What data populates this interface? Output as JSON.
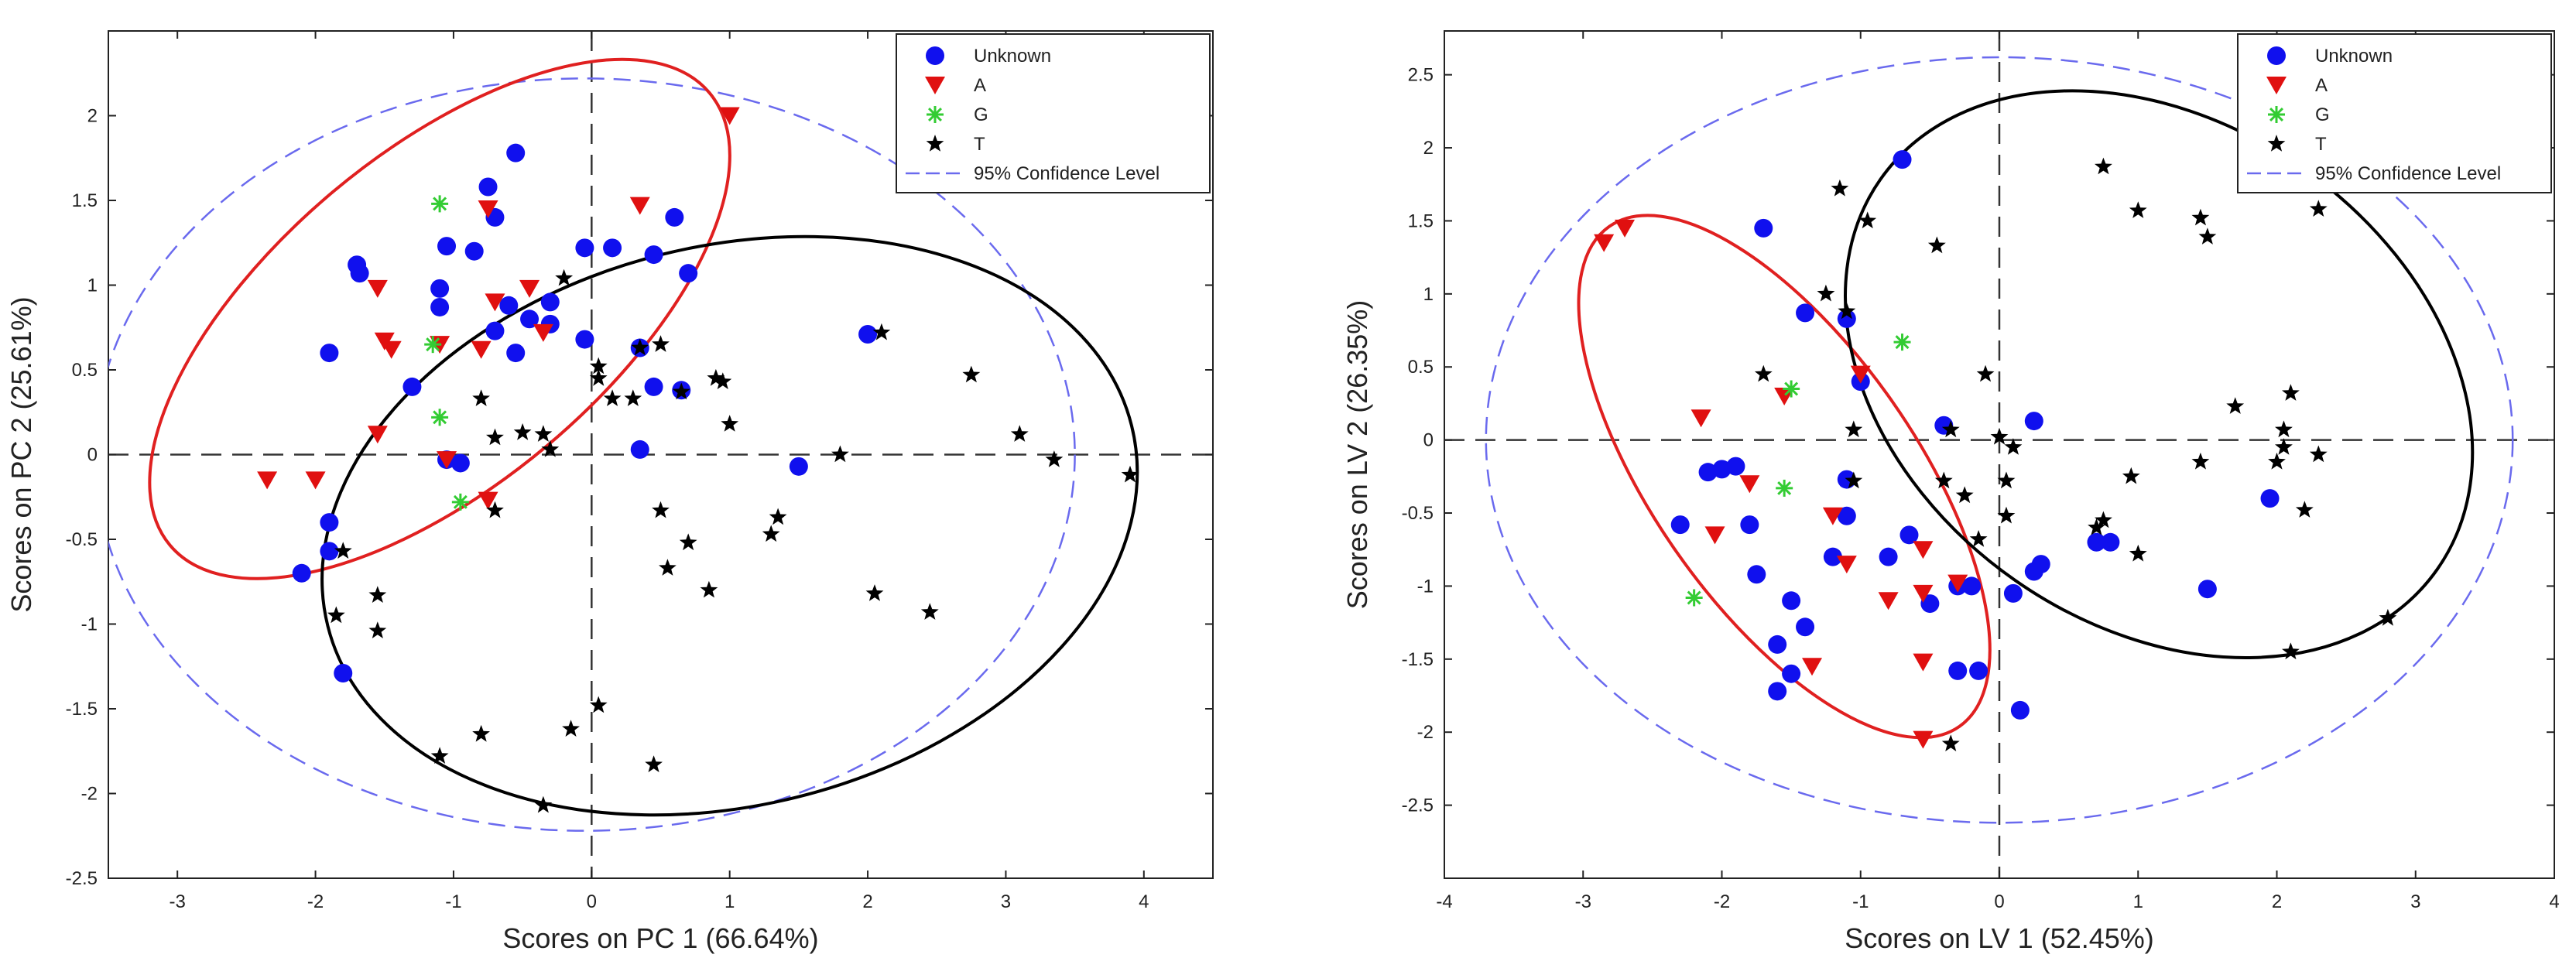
{
  "colors": {
    "unknown": "#1010ee",
    "A": "#e01010",
    "G": "#33cc33",
    "T": "#000000",
    "confidence": "#6a6aee",
    "red_ellipse": "#e02020",
    "black_ellipse": "#000000"
  },
  "chart_data": [
    {
      "type": "scatter",
      "xlabel": "Scores on PC 1 (66.64%)",
      "ylabel": "Scores on PC 2 (25.61%)",
      "xlim": [
        -3.5,
        4.5
      ],
      "ylim": [
        -2.5,
        2.5
      ],
      "xticks": [
        -3,
        -2,
        -1,
        0,
        1,
        2,
        3,
        4
      ],
      "yticks": [
        -2.5,
        -2,
        -1.5,
        -1,
        -0.5,
        0,
        0.5,
        1,
        1.5,
        2
      ],
      "ytick_labels": [
        "-2.5",
        "-2",
        "-1.5",
        "-1",
        "-0.5",
        "0",
        "0.5",
        "1",
        "1.5",
        "2"
      ],
      "xtick_labels": [
        "-3",
        "-2",
        "-1",
        "0",
        "1",
        "2",
        "3",
        "4"
      ],
      "legend": {
        "position": "top-right",
        "entries": [
          "Unknown",
          "A",
          "G",
          "T",
          "95% Confidence Level"
        ]
      },
      "series": [
        {
          "name": "Unknown",
          "marker": "circle",
          "points": [
            [
              -0.55,
              1.78
            ],
            [
              -0.75,
              1.58
            ],
            [
              -0.7,
              1.4
            ],
            [
              -1.7,
              1.12
            ],
            [
              -1.05,
              1.23
            ],
            [
              -1.68,
              1.07
            ],
            [
              -1.1,
              0.98
            ],
            [
              -0.85,
              1.2
            ],
            [
              -1.1,
              0.87
            ],
            [
              -0.6,
              0.88
            ],
            [
              -0.45,
              0.8
            ],
            [
              -0.3,
              0.9
            ],
            [
              -0.7,
              0.73
            ],
            [
              -0.3,
              0.77
            ],
            [
              -0.55,
              0.6
            ],
            [
              -0.05,
              1.22
            ],
            [
              0.15,
              1.22
            ],
            [
              0.45,
              1.18
            ],
            [
              0.6,
              1.4
            ],
            [
              0.7,
              1.07
            ],
            [
              -1.9,
              0.6
            ],
            [
              -1.3,
              0.4
            ],
            [
              -0.05,
              0.68
            ],
            [
              0.35,
              0.63
            ],
            [
              0.45,
              0.4
            ],
            [
              0.65,
              0.38
            ],
            [
              0.35,
              0.03
            ],
            [
              1.5,
              -0.07
            ],
            [
              2.0,
              0.71
            ],
            [
              -1.05,
              -0.03
            ],
            [
              -0.95,
              -0.05
            ],
            [
              -1.9,
              -0.4
            ],
            [
              -1.9,
              -0.57
            ],
            [
              -2.1,
              -0.7
            ],
            [
              -1.8,
              -1.29
            ]
          ]
        },
        {
          "name": "A",
          "marker": "triangle-down",
          "points": [
            [
              1.0,
              2.0
            ],
            [
              0.35,
              1.47
            ],
            [
              -0.75,
              1.45
            ],
            [
              -1.55,
              0.98
            ],
            [
              -0.7,
              0.9
            ],
            [
              -0.45,
              0.98
            ],
            [
              -0.35,
              0.72
            ],
            [
              -1.45,
              0.62
            ],
            [
              -1.5,
              0.67
            ],
            [
              -1.1,
              0.65
            ],
            [
              -0.8,
              0.62
            ],
            [
              -1.55,
              0.12
            ],
            [
              -1.05,
              -0.03
            ],
            [
              -2.35,
              -0.15
            ],
            [
              -2.0,
              -0.15
            ],
            [
              -0.75,
              -0.27
            ]
          ]
        },
        {
          "name": "G",
          "marker": "asterisk",
          "points": [
            [
              -1.1,
              1.48
            ],
            [
              -1.15,
              0.65
            ],
            [
              -1.1,
              0.22
            ],
            [
              -0.95,
              -0.28
            ]
          ]
        },
        {
          "name": "T",
          "marker": "star",
          "points": [
            [
              -0.2,
              1.04
            ],
            [
              0.05,
              0.52
            ],
            [
              0.05,
              0.45
            ],
            [
              0.35,
              0.63
            ],
            [
              0.5,
              0.65
            ],
            [
              0.65,
              0.37
            ],
            [
              0.9,
              0.45
            ],
            [
              0.95,
              0.43
            ],
            [
              2.1,
              0.72
            ],
            [
              1.0,
              0.18
            ],
            [
              0.15,
              0.33
            ],
            [
              0.3,
              0.33
            ],
            [
              -0.8,
              0.33
            ],
            [
              -0.7,
              0.1
            ],
            [
              -0.35,
              0.12
            ],
            [
              -0.3,
              0.03
            ],
            [
              -0.5,
              0.13
            ],
            [
              -0.7,
              -0.33
            ],
            [
              1.8,
              0.0
            ],
            [
              2.75,
              0.47
            ],
            [
              3.1,
              0.12
            ],
            [
              3.35,
              -0.03
            ],
            [
              3.9,
              -0.12
            ],
            [
              0.5,
              -0.33
            ],
            [
              0.7,
              -0.52
            ],
            [
              1.3,
              -0.47
            ],
            [
              1.35,
              -0.37
            ],
            [
              0.55,
              -0.67
            ],
            [
              0.85,
              -0.8
            ],
            [
              2.05,
              -0.82
            ],
            [
              2.45,
              -0.93
            ],
            [
              -1.8,
              -0.57
            ],
            [
              -1.55,
              -0.83
            ],
            [
              -1.85,
              -0.95
            ],
            [
              -1.55,
              -1.04
            ],
            [
              -0.8,
              -1.65
            ],
            [
              -0.15,
              -1.62
            ],
            [
              0.05,
              -1.48
            ],
            [
              -1.1,
              -1.78
            ],
            [
              0.45,
              -1.83
            ],
            [
              -0.35,
              -2.07
            ]
          ]
        }
      ],
      "ellipses": [
        {
          "name": "95% Confidence Level",
          "cx": -0.05,
          "cy": 0.0,
          "rx": 3.55,
          "ry": 2.22,
          "angle": 0
        },
        {
          "name": "A group",
          "cx": -1.1,
          "cy": 0.8,
          "rx": 2.55,
          "ry": 0.98,
          "angle": 40
        },
        {
          "name": "T group",
          "cx": 1.0,
          "cy": -0.42,
          "rx": 3.0,
          "ry": 1.65,
          "angle": 14
        }
      ]
    },
    {
      "type": "scatter",
      "xlabel": "Scores on LV 1 (52.45%)",
      "ylabel": "Scores on LV 2 (26.35%)",
      "xlim": [
        -4,
        4
      ],
      "ylim": [
        -3,
        2.8
      ],
      "xticks": [
        -4,
        -3,
        -2,
        -1,
        0,
        1,
        2,
        3,
        4
      ],
      "yticks": [
        -2.5,
        -2,
        -1.5,
        -1,
        -0.5,
        0,
        0.5,
        1,
        1.5,
        2,
        2.5
      ],
      "ytick_labels": [
        "-2.5",
        "-2",
        "-1.5",
        "-1",
        "-0.5",
        "0",
        "0.5",
        "1",
        "1.5",
        "2",
        "2.5"
      ],
      "xtick_labels": [
        "-4",
        "-3",
        "-2",
        "-1",
        "0",
        "1",
        "2",
        "3",
        "4"
      ],
      "legend": {
        "position": "top-right",
        "entries": [
          "Unknown",
          "A",
          "G",
          "T",
          "95% Confidence Level"
        ]
      },
      "series": [
        {
          "name": "Unknown",
          "marker": "circle",
          "points": [
            [
              -0.7,
              1.92
            ],
            [
              -1.7,
              1.45
            ],
            [
              -1.4,
              0.87
            ],
            [
              -1.1,
              0.83
            ],
            [
              -1.0,
              0.4
            ],
            [
              -0.4,
              0.1
            ],
            [
              0.25,
              0.13
            ],
            [
              -1.1,
              -0.27
            ],
            [
              -1.1,
              -0.52
            ],
            [
              -1.2,
              -0.8
            ],
            [
              -0.65,
              -0.65
            ],
            [
              -0.8,
              -0.8
            ],
            [
              -0.3,
              -1.0
            ],
            [
              -0.2,
              -1.0
            ],
            [
              -0.5,
              -1.12
            ],
            [
              -0.3,
              -1.58
            ],
            [
              -0.15,
              -1.58
            ],
            [
              -2.3,
              -0.58
            ],
            [
              -2.0,
              -0.2
            ],
            [
              -1.9,
              -0.18
            ],
            [
              -2.1,
              -0.22
            ],
            [
              -1.8,
              -0.58
            ],
            [
              -1.75,
              -0.92
            ],
            [
              -1.5,
              -1.1
            ],
            [
              -1.4,
              -1.28
            ],
            [
              -1.6,
              -1.4
            ],
            [
              -1.5,
              -1.6
            ],
            [
              -1.6,
              -1.72
            ],
            [
              0.1,
              -1.05
            ],
            [
              0.25,
              -0.9
            ],
            [
              0.3,
              -0.85
            ],
            [
              0.15,
              -1.85
            ],
            [
              0.7,
              -0.7
            ],
            [
              0.8,
              -0.7
            ],
            [
              1.5,
              -1.02
            ],
            [
              1.95,
              -0.4
            ]
          ]
        },
        {
          "name": "A",
          "marker": "triangle-down",
          "points": [
            [
              -2.85,
              1.35
            ],
            [
              -2.7,
              1.45
            ],
            [
              -2.15,
              0.15
            ],
            [
              -2.05,
              -0.65
            ],
            [
              -1.8,
              -0.3
            ],
            [
              -1.55,
              0.3
            ],
            [
              -1.2,
              -0.52
            ],
            [
              -1.0,
              0.45
            ],
            [
              -1.1,
              -0.85
            ],
            [
              -0.55,
              -0.75
            ],
            [
              -0.55,
              -1.05
            ],
            [
              -0.3,
              -0.98
            ],
            [
              -0.55,
              -1.52
            ],
            [
              -1.35,
              -1.55
            ],
            [
              -0.8,
              -1.1
            ],
            [
              -0.55,
              -2.05
            ]
          ]
        },
        {
          "name": "G",
          "marker": "asterisk",
          "points": [
            [
              -0.7,
              0.67
            ],
            [
              -1.5,
              0.35
            ],
            [
              -1.55,
              -0.33
            ],
            [
              -2.2,
              -1.08
            ]
          ]
        },
        {
          "name": "T",
          "marker": "star",
          "points": [
            [
              -1.15,
              1.72
            ],
            [
              -0.95,
              1.5
            ],
            [
              -0.45,
              1.33
            ],
            [
              -1.25,
              1.0
            ],
            [
              -1.1,
              0.88
            ],
            [
              -1.7,
              0.45
            ],
            [
              -0.1,
              0.45
            ],
            [
              -1.05,
              0.07
            ],
            [
              -0.35,
              0.07
            ],
            [
              0.0,
              0.02
            ],
            [
              0.1,
              -0.05
            ],
            [
              0.05,
              -0.28
            ],
            [
              -0.4,
              -0.28
            ],
            [
              -0.25,
              -0.38
            ],
            [
              0.05,
              -0.52
            ],
            [
              -0.15,
              -0.68
            ],
            [
              -1.05,
              -0.28
            ],
            [
              0.7,
              -0.6
            ],
            [
              0.75,
              -0.55
            ],
            [
              1.0,
              -0.78
            ],
            [
              0.95,
              -0.25
            ],
            [
              0.75,
              1.87
            ],
            [
              1.0,
              1.57
            ],
            [
              1.45,
              1.52
            ],
            [
              1.5,
              1.39
            ],
            [
              2.3,
              1.58
            ],
            [
              1.7,
              0.23
            ],
            [
              2.1,
              0.32
            ],
            [
              2.05,
              0.07
            ],
            [
              1.45,
              -0.15
            ],
            [
              2.0,
              -0.15
            ],
            [
              2.05,
              -0.05
            ],
            [
              2.3,
              -0.1
            ],
            [
              2.2,
              -0.48
            ],
            [
              2.8,
              -1.22
            ],
            [
              2.1,
              -1.45
            ],
            [
              -0.35,
              -2.08
            ]
          ]
        }
      ],
      "ellipses": [
        {
          "name": "95% Confidence Level",
          "cx": 0.0,
          "cy": 0.0,
          "rx": 3.7,
          "ry": 2.62,
          "angle": 0
        },
        {
          "name": "A group",
          "cx": -1.55,
          "cy": -0.25,
          "rx": 2.2,
          "ry": 0.9,
          "angle": -55
        },
        {
          "name": "T group",
          "cx": 1.15,
          "cy": 0.45,
          "rx": 2.45,
          "ry": 1.72,
          "angle": -35
        }
      ]
    }
  ]
}
